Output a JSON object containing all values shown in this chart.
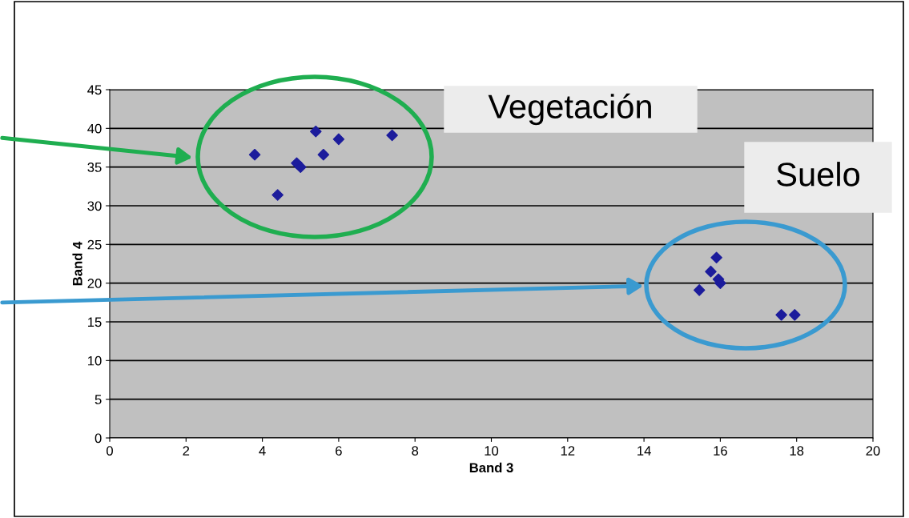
{
  "chart_data": {
    "type": "scatter",
    "xlabel": "Band 3",
    "ylabel": "Band 4",
    "x": [
      3.8,
      4.4,
      4.9,
      5.0,
      5.4,
      5.6,
      6.0,
      7.4,
      15.45,
      15.75,
      15.9,
      15.95,
      16.0,
      17.6,
      17.95
    ],
    "series": [
      {
        "color": "#1c1c9c",
        "values": [
          36.6,
          31.4,
          35.5,
          35.0,
          39.6,
          36.6,
          38.6,
          39.1,
          19.1,
          21.5,
          23.3,
          20.5,
          20.0,
          15.9,
          15.9
        ]
      }
    ],
    "xlim": [
      0,
      20
    ],
    "xticks": [
      0,
      2,
      4,
      6,
      8,
      10,
      12,
      14,
      16,
      18,
      20
    ],
    "ylim": [
      0,
      45
    ],
    "yticks": [
      0,
      5,
      10,
      15,
      20,
      25,
      30,
      35,
      40,
      45
    ],
    "grid": "y",
    "marker": "diamond",
    "annotations": [
      "Vegetación",
      "Suelo"
    ]
  }
}
